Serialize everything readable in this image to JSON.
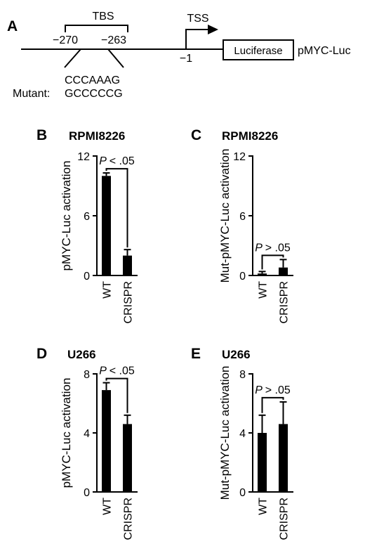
{
  "panel_a": {
    "letter": "A",
    "tbs_label": "TBS",
    "pos_start": "−270",
    "pos_end": "−263",
    "tss_label": "TSS",
    "tss_pos": "−1",
    "luciferase": "Luciferase",
    "construct": "pMYC-Luc",
    "wt_seq": "CCCAAAG",
    "mutant_label": "Mutant:",
    "mutant_seq": "GCCCCCG"
  },
  "chart_data": [
    {
      "panel": "B",
      "title": "RPMI8226",
      "type": "bar",
      "ylabel": "pMYC-Luc activation",
      "categories": [
        "WT",
        "CRISPR"
      ],
      "values": [
        10.0,
        2.0
      ],
      "errors": [
        0.3,
        0.6
      ],
      "ylim": [
        0,
        12
      ],
      "yticks": [
        0,
        6,
        12
      ],
      "pval": "< .05"
    },
    {
      "panel": "C",
      "title": "RPMI8226",
      "type": "bar",
      "ylabel": "Mut-pMYC-Luc activation",
      "categories": [
        "WT",
        "CRISPR"
      ],
      "values": [
        0.2,
        0.8
      ],
      "errors": [
        0.2,
        0.8
      ],
      "ylim": [
        0,
        12
      ],
      "yticks": [
        0,
        6,
        12
      ],
      "pval": "> .05"
    },
    {
      "panel": "D",
      "title": "U266",
      "type": "bar",
      "ylabel": "pMYC-Luc activation",
      "categories": [
        "WT",
        "CRISPR"
      ],
      "values": [
        6.9,
        4.6
      ],
      "errors": [
        0.5,
        0.6
      ],
      "ylim": [
        0,
        8
      ],
      "yticks": [
        0,
        4,
        8
      ],
      "pval": "< .05"
    },
    {
      "panel": "E",
      "title": "U266",
      "type": "bar",
      "ylabel": "Mut-pMYC-Luc activation",
      "categories": [
        "WT",
        "CRISPR"
      ],
      "values": [
        4.0,
        4.6
      ],
      "errors": [
        1.2,
        1.5
      ],
      "ylim": [
        0,
        8
      ],
      "yticks": [
        0,
        4,
        8
      ],
      "pval": "> .05"
    }
  ]
}
